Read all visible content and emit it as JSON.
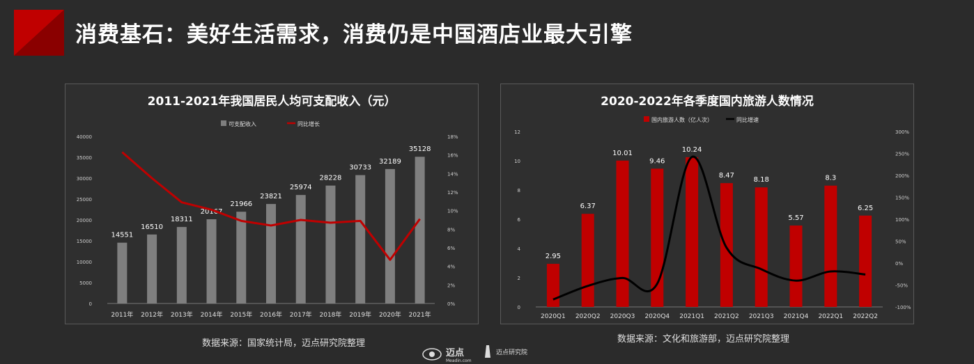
{
  "page": {
    "title": "消费基石：美好生活需求，消费仍是中国酒店业最大引擎",
    "accent": "#c00000",
    "footer_brand_1": "迈点",
    "footer_brand_1_sub": "Meadin.com",
    "footer_brand_2": "迈点研究院"
  },
  "chart_data": [
    {
      "type": "bar",
      "title": "2011-2021年我国居民人均可支配收入（元）",
      "categories": [
        "2011年",
        "2012年",
        "2013年",
        "2014年",
        "2015年",
        "2016年",
        "2017年",
        "2018年",
        "2019年",
        "2020年",
        "2021年"
      ],
      "series": [
        {
          "name": "可支配收入",
          "kind": "bar",
          "axis": "left",
          "color": "#7f7f7f",
          "values": [
            14551,
            16510,
            18311,
            20167,
            21966,
            23821,
            25974,
            28228,
            30733,
            32189,
            35128
          ]
        },
        {
          "name": "同比增长",
          "kind": "line",
          "axis": "right",
          "color": "#c00000",
          "values": [
            16.3,
            13.5,
            10.9,
            10.1,
            8.9,
            8.4,
            9.0,
            8.7,
            8.9,
            4.7,
            9.1
          ]
        }
      ],
      "y_left": {
        "min": 0,
        "max": 40000,
        "ticks": [
          0,
          5000,
          10000,
          15000,
          20000,
          25000,
          30000,
          35000,
          40000
        ],
        "labels": [
          "0",
          "5000",
          "10000",
          "15000",
          "20000",
          "25000",
          "30000",
          "35000",
          "40000"
        ]
      },
      "y_right": {
        "min": 0,
        "max": 18,
        "ticks": [
          0,
          2,
          4,
          6,
          8,
          10,
          12,
          14,
          16,
          18
        ],
        "labels": [
          "0%",
          "2%",
          "4%",
          "6%",
          "8%",
          "10%",
          "12%",
          "14%",
          "16%",
          "18%"
        ]
      },
      "data_labels": [
        "14551",
        "16510",
        "18311",
        "20167",
        "21966",
        "23821",
        "25974",
        "28228",
        "30733",
        "32189",
        "35128"
      ],
      "legend": "top-center",
      "source": "数据来源：国家统计局，迈点研究院整理"
    },
    {
      "type": "bar",
      "title": "2020-2022年各季度国内旅游人数情况",
      "categories": [
        "2020Q1",
        "2020Q2",
        "2020Q3",
        "2020Q4",
        "2021Q1",
        "2021Q2",
        "2021Q3",
        "2021Q4",
        "2022Q1",
        "2022Q2"
      ],
      "series": [
        {
          "name": "国内旅游人数（亿人次）",
          "kind": "bar",
          "axis": "left",
          "color": "#c00000",
          "values": [
            2.95,
            6.37,
            10.01,
            9.46,
            10.24,
            8.47,
            8.18,
            5.57,
            8.3,
            6.25
          ]
        },
        {
          "name": "同比增速",
          "kind": "line",
          "axis": "right",
          "color": "#000000",
          "smooth": true,
          "values": [
            -83,
            -52,
            -34,
            -47,
            242,
            35,
            -14,
            -40,
            -19,
            -26
          ]
        }
      ],
      "y_left": {
        "min": 0,
        "max": 12,
        "ticks": [
          0,
          2,
          4,
          6,
          8,
          10,
          12
        ],
        "labels": [
          "0",
          "2",
          "4",
          "6",
          "8",
          "10",
          "12"
        ]
      },
      "y_right": {
        "min": -100,
        "max": 300,
        "ticks": [
          -100,
          -50,
          0,
          50,
          100,
          150,
          200,
          250,
          300
        ],
        "labels": [
          "-100%",
          "-50%",
          "0%",
          "50%",
          "100%",
          "150%",
          "200%",
          "250%",
          "300%"
        ]
      },
      "data_labels": [
        "2.95",
        "6.37",
        "10.01",
        "9.46",
        "10.24",
        "8.47",
        "8.18",
        "5.57",
        "8.3",
        "6.25"
      ],
      "legend": "top-center",
      "source": "数据来源：文化和旅游部，迈点研究院整理"
    }
  ]
}
